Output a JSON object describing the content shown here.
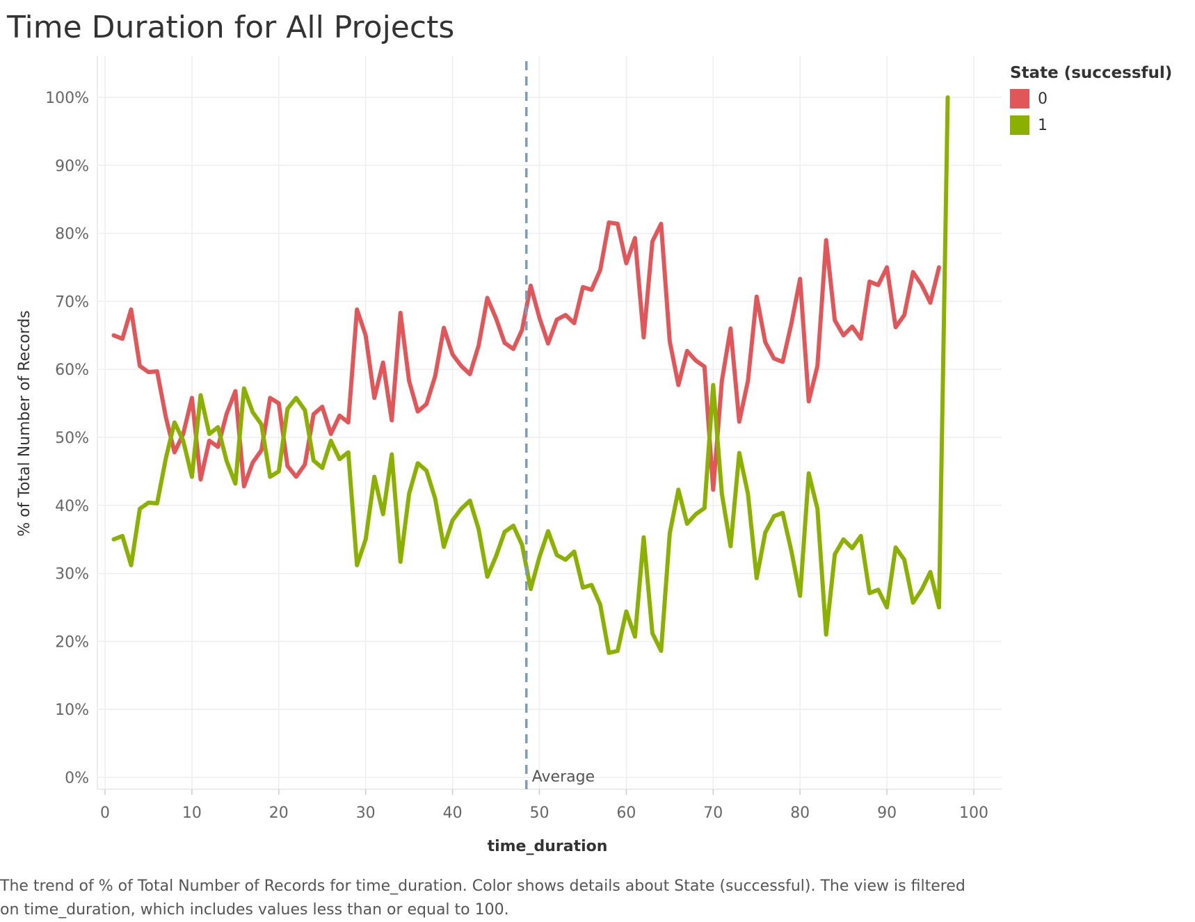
{
  "title": "Time Duration for All Projects",
  "caption": "The trend of % of Total Number of Records for time_duration.  Color shows details about State (successful). The view is filtered on time_duration, which includes values less than or equal to 100.",
  "legend": {
    "title": "State (successful)",
    "items": [
      {
        "label": "0",
        "color": "#e15759"
      },
      {
        "label": "1",
        "color": "#8cb000"
      }
    ]
  },
  "chart_data": {
    "type": "line",
    "title": "Time Duration for All Projects",
    "xlabel": "time_duration",
    "ylabel": "% of Total Number of Records",
    "xlim": [
      0,
      100
    ],
    "ylim": [
      0,
      100
    ],
    "x_ticks": [
      0,
      10,
      20,
      30,
      40,
      50,
      60,
      70,
      80,
      90,
      100
    ],
    "y_ticks": [
      0,
      10,
      20,
      30,
      40,
      50,
      60,
      70,
      80,
      90,
      100
    ],
    "y_tick_labels": [
      "0%",
      "10%",
      "20%",
      "30%",
      "40%",
      "50%",
      "60%",
      "70%",
      "80%",
      "90%",
      "100%"
    ],
    "grid": true,
    "legend_position": "top-right",
    "reference_line": {
      "label": "Average",
      "x": 48.5,
      "style": "dashed",
      "color": "#7a9cc0"
    },
    "x": [
      1,
      2,
      3,
      4,
      5,
      6,
      7,
      8,
      9,
      10,
      11,
      12,
      13,
      14,
      15,
      16,
      17,
      18,
      19,
      20,
      21,
      22,
      23,
      24,
      25,
      26,
      27,
      28,
      29,
      30,
      31,
      32,
      33,
      34,
      35,
      36,
      37,
      38,
      39,
      40,
      41,
      42,
      43,
      44,
      45,
      46,
      47,
      48,
      49,
      50,
      51,
      52,
      53,
      54,
      55,
      56,
      57,
      58,
      59,
      60,
      61,
      62,
      63,
      64,
      65,
      66,
      67,
      68,
      69,
      70,
      71,
      72,
      73,
      74,
      75,
      76,
      77,
      78,
      79,
      80,
      81,
      82,
      83,
      84,
      85,
      86,
      87,
      88,
      89,
      90,
      91,
      92,
      93,
      94,
      95,
      96,
      97
    ],
    "series": [
      {
        "name": "0",
        "color": "#e15759",
        "values": [
          65,
          64.5,
          68.8,
          60.5,
          59.6,
          59.7,
          53,
          47.8,
          50.5,
          55.8,
          43.8,
          49.5,
          48.6,
          53.5,
          56.8,
          42.8,
          46.3,
          48.1,
          55.8,
          55,
          45.8,
          44.2,
          46,
          53.4,
          54.5,
          50.5,
          53.2,
          52.2,
          68.8,
          65,
          55.8,
          61,
          52.5,
          68.3,
          58.3,
          53.8,
          54.9,
          59,
          66.1,
          62.2,
          60.5,
          59.3,
          63.5,
          70.5,
          67.5,
          63.9,
          63,
          65.8,
          72.3,
          67.6,
          63.8,
          67.3,
          68,
          66.8,
          72.1,
          71.7,
          74.6,
          81.6,
          81.4,
          75.6,
          79.3,
          64.7,
          78.8,
          81.4,
          64.1,
          57.7,
          62.7,
          61.3,
          60.4,
          42.3,
          58.3,
          66,
          52.3,
          58.3,
          70.7,
          64,
          61.6,
          61.1,
          66.7,
          73.3,
          55.3,
          60.5,
          79,
          67.2,
          65,
          66.3,
          64.5,
          72.9,
          72.4,
          75,
          66.2,
          68,
          74.3,
          72.4,
          69.8,
          75,
          null
        ]
      },
      {
        "name": "1",
        "color": "#8cb000",
        "values": [
          35,
          35.5,
          31.2,
          39.5,
          40.4,
          40.3,
          46.9,
          52.2,
          49.5,
          44.2,
          56.2,
          50.5,
          51.5,
          46.5,
          43.2,
          57.2,
          53.7,
          51.9,
          44.2,
          45,
          54.2,
          55.8,
          54,
          46.6,
          45.5,
          49.5,
          46.8,
          47.8,
          31.2,
          35,
          44.2,
          38.7,
          47.5,
          31.7,
          41.7,
          46.2,
          45.1,
          41,
          33.9,
          37.8,
          39.5,
          40.7,
          36.5,
          29.5,
          32.5,
          36.1,
          37,
          34.2,
          27.7,
          32.4,
          36.2,
          32.7,
          32,
          33.2,
          27.9,
          28.3,
          25.4,
          18.3,
          18.6,
          24.4,
          20.7,
          35.3,
          21.2,
          18.6,
          35.9,
          42.3,
          37.3,
          38.7,
          39.6,
          57.7,
          41.7,
          34,
          47.7,
          41.7,
          29.3,
          36,
          38.4,
          38.9,
          33.3,
          26.7,
          44.7,
          39.5,
          21,
          32.8,
          35,
          33.7,
          35.5,
          27.1,
          27.6,
          25,
          33.8,
          32,
          25.7,
          27.6,
          30.2,
          25,
          100
        ]
      }
    ]
  }
}
